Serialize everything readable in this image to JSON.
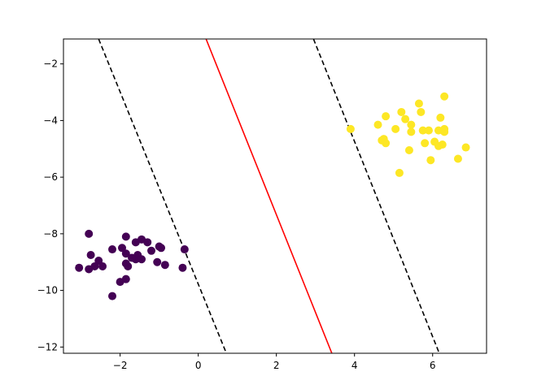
{
  "chart_data": {
    "type": "scatter",
    "title": "",
    "xlabel": "",
    "ylabel": "",
    "xlim": [
      -3.45,
      7.38
    ],
    "ylim": [
      -12.22,
      -1.12
    ],
    "grid": false,
    "legend": "none",
    "xticks": [
      {
        "value": -2,
        "label": "−2"
      },
      {
        "value": 0,
        "label": "0"
      },
      {
        "value": 2,
        "label": "2"
      },
      {
        "value": 4,
        "label": "4"
      },
      {
        "value": 6,
        "label": "6"
      }
    ],
    "yticks": [
      {
        "value": -2,
        "label": "−2"
      },
      {
        "value": -4,
        "label": "−4"
      },
      {
        "value": -6,
        "label": "−6"
      },
      {
        "value": -8,
        "label": "−8"
      },
      {
        "value": -10,
        "label": "−10"
      },
      {
        "value": -12,
        "label": "−12"
      }
    ],
    "series": [
      {
        "color": "#440154",
        "x": [
          -2.8,
          -2.2,
          -1.85,
          -1.6,
          -1.45,
          -1.3,
          -1.0,
          -0.95,
          -0.35,
          -2.75,
          -2.55,
          -2.45,
          -2.65,
          -1.95,
          -1.85,
          -1.55,
          -1.2,
          -1.6,
          -1.85,
          -1.7,
          -1.45,
          -1.05,
          -0.85,
          -0.4,
          -3.05,
          -2.8,
          -1.8,
          -2.0,
          -1.85,
          -2.2
        ],
        "y": [
          -8.0,
          -8.55,
          -8.1,
          -8.3,
          -8.2,
          -8.3,
          -8.45,
          -8.5,
          -8.55,
          -8.75,
          -8.95,
          -9.15,
          -9.15,
          -8.5,
          -8.7,
          -8.75,
          -8.6,
          -8.9,
          -9.05,
          -8.85,
          -8.9,
          -9.0,
          -9.1,
          -9.2,
          -9.2,
          -9.25,
          -9.15,
          -9.7,
          -9.6,
          -10.2
        ]
      },
      {
        "color": "#fde725",
        "x": [
          6.3,
          5.65,
          5.7,
          5.2,
          5.3,
          6.2,
          4.6,
          4.8,
          5.45,
          5.05,
          5.75,
          5.9,
          5.45,
          6.15,
          6.3,
          6.3,
          3.9,
          4.75,
          4.7,
          4.8,
          6.05,
          5.8,
          6.25,
          6.85,
          6.15,
          5.4,
          5.95,
          6.65,
          5.15
        ],
        "y": [
          -3.15,
          -3.4,
          -3.7,
          -3.7,
          -3.95,
          -3.9,
          -4.15,
          -3.85,
          -4.15,
          -4.3,
          -4.35,
          -4.35,
          -4.4,
          -4.35,
          -4.3,
          -4.4,
          -4.3,
          -4.65,
          -4.7,
          -4.8,
          -4.75,
          -4.8,
          -4.85,
          -4.95,
          -4.9,
          -5.05,
          -5.4,
          -5.35,
          -5.85
        ]
      }
    ],
    "lines": [
      {
        "style": "solid",
        "color": "#ff0000",
        "x": [
          0.2,
          3.42
        ],
        "y": [
          -1.12,
          -12.22
        ]
      },
      {
        "style": "dashed",
        "color": "#000000",
        "x": [
          -2.55,
          0.72
        ],
        "y": [
          -1.12,
          -12.22
        ]
      },
      {
        "style": "dashed",
        "color": "#000000",
        "x": [
          2.95,
          6.17
        ],
        "y": [
          -1.12,
          -12.22
        ]
      }
    ]
  }
}
